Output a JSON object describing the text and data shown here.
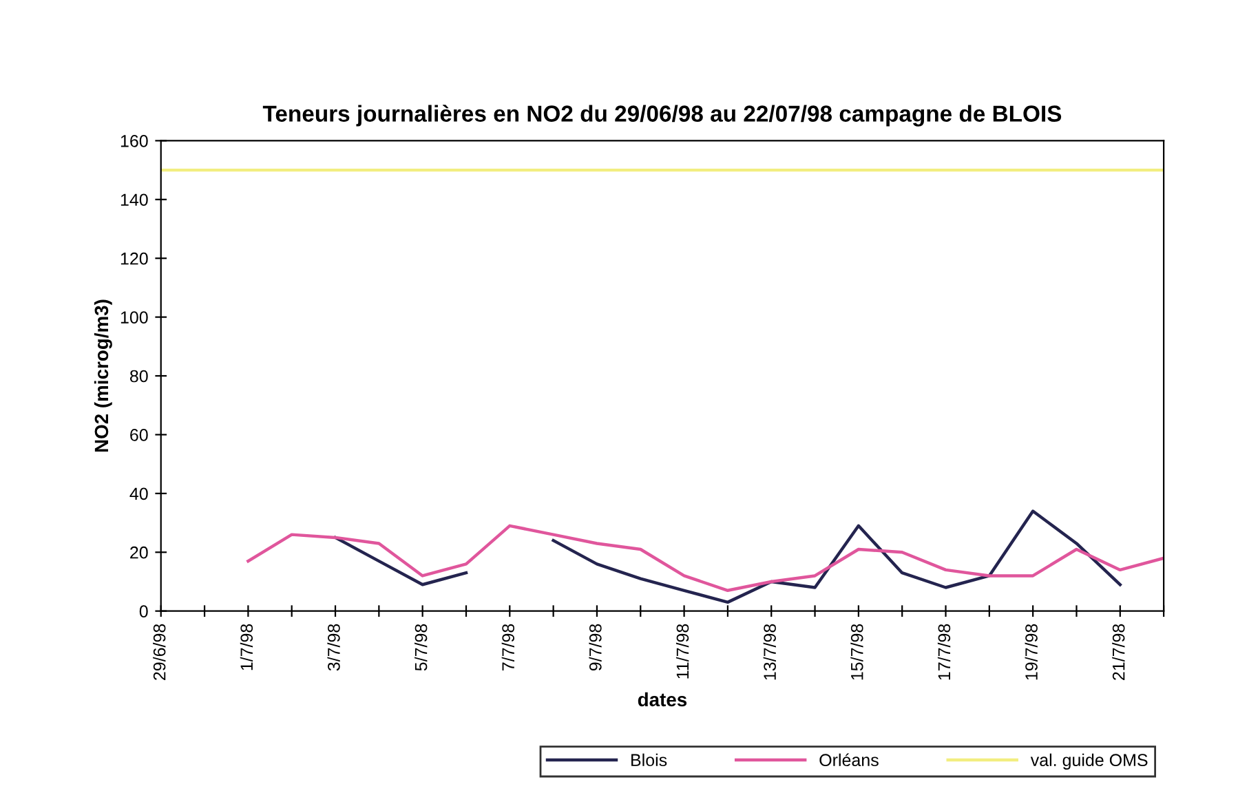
{
  "chart_data": {
    "type": "line",
    "title": "Teneurs journalières en NO2 du 29/06/98 au 22/07/98 campagne de BLOIS",
    "xlabel": "dates",
    "ylabel": "NO2 (microg/m3)",
    "categories": [
      "29/6/98",
      null,
      "1/7/98",
      null,
      "3/7/98",
      null,
      "5/7/98",
      null,
      "7/7/98",
      null,
      "9/7/98",
      null,
      "11/7/98",
      null,
      "13/7/98",
      null,
      "15/7/98",
      null,
      "17/7/98",
      null,
      "19/7/98",
      null,
      "21/7/98",
      null
    ],
    "series": [
      {
        "name": "Blois",
        "color": "#24244f",
        "values": [
          null,
          null,
          null,
          null,
          25,
          17,
          9,
          13,
          null,
          24,
          16,
          11,
          7,
          3,
          10,
          8,
          29,
          13,
          8,
          12,
          34,
          23,
          9,
          null
        ]
      },
      {
        "name": "Orléans",
        "color": "#e0569c",
        "values": [
          null,
          null,
          17,
          26,
          25,
          23,
          12,
          16,
          29,
          26,
          23,
          21,
          12,
          7,
          10,
          12,
          21,
          20,
          14,
          12,
          12,
          21,
          14,
          18
        ]
      },
      {
        "name": "val. guide OMS",
        "color": "#f2ee80",
        "values": [
          150,
          150,
          150,
          150,
          150,
          150,
          150,
          150,
          150,
          150,
          150,
          150,
          150,
          150,
          150,
          150,
          150,
          150,
          150,
          150,
          150,
          150,
          150,
          150
        ]
      }
    ],
    "ylim": [
      0,
      160
    ],
    "yticks": [
      0,
      20,
      40,
      60,
      80,
      100,
      120,
      140,
      160
    ],
    "grid": false,
    "legend": "bottom right",
    "marker": "none",
    "line_style": "solid"
  }
}
